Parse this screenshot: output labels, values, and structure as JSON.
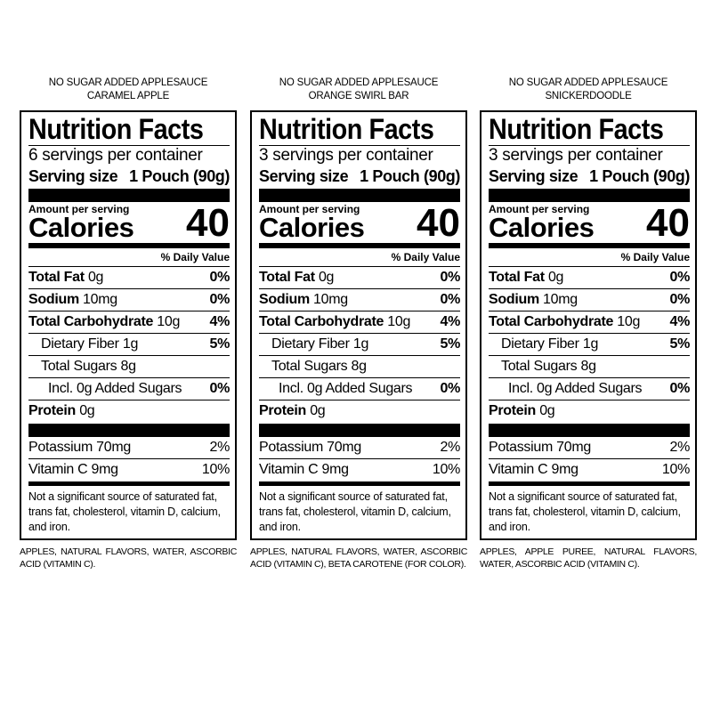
{
  "panels": [
    {
      "product_line": "NO SUGAR ADDED APPLESAUCE",
      "flavor": "CARAMEL APPLE",
      "title": "Nutrition Facts",
      "servings_per_container": "6 servings per container",
      "serving_size_label": "Serving size",
      "serving_size_value": "1 Pouch (90g)",
      "amount_per_serving": "Amount per serving",
      "calories_label": "Calories",
      "calories_value": "40",
      "daily_value_header": "% Daily Value",
      "nutrients": [
        {
          "name": "Total Fat",
          "amount": "0g",
          "dv": "0%"
        },
        {
          "name": "Sodium",
          "amount": "10mg",
          "dv": "0%"
        },
        {
          "name": "Total Carbohydrate",
          "amount": "10g",
          "dv": "4%"
        },
        {
          "name": "Dietary Fiber",
          "amount": "1g",
          "dv": "5%"
        },
        {
          "name": "Total Sugars",
          "amount": "8g",
          "dv": ""
        },
        {
          "name": "Incl. 0g Added Sugars",
          "amount": "",
          "dv": "0%"
        },
        {
          "name": "Protein",
          "amount": "0g",
          "dv": ""
        }
      ],
      "vitamins": [
        {
          "name": "Potassium",
          "amount": "70mg",
          "dv": "2%"
        },
        {
          "name": "Vitamin C",
          "amount": "9mg",
          "dv": "10%"
        }
      ],
      "footnote": "Not a significant source of saturated fat, trans fat, cholesterol, vitamin D, calcium, and iron.",
      "ingredients": "APPLES, NATURAL FLAVORS, WATER, ASCORBIC ACID (VITAMIN C)."
    },
    {
      "product_line": "NO SUGAR ADDED APPLESAUCE",
      "flavor": "ORANGE SWIRL BAR",
      "title": "Nutrition Facts",
      "servings_per_container": "3 servings per container",
      "serving_size_label": "Serving size",
      "serving_size_value": "1 Pouch (90g)",
      "amount_per_serving": "Amount per serving",
      "calories_label": "Calories",
      "calories_value": "40",
      "daily_value_header": "% Daily Value",
      "nutrients": [
        {
          "name": "Total Fat",
          "amount": "0g",
          "dv": "0%"
        },
        {
          "name": "Sodium",
          "amount": "10mg",
          "dv": "0%"
        },
        {
          "name": "Total Carbohydrate",
          "amount": "10g",
          "dv": "4%"
        },
        {
          "name": "Dietary Fiber",
          "amount": "1g",
          "dv": "5%"
        },
        {
          "name": "Total Sugars",
          "amount": "8g",
          "dv": ""
        },
        {
          "name": "Incl. 0g Added Sugars",
          "amount": "",
          "dv": "0%"
        },
        {
          "name": "Protein",
          "amount": "0g",
          "dv": ""
        }
      ],
      "vitamins": [
        {
          "name": "Potassium",
          "amount": "70mg",
          "dv": "2%"
        },
        {
          "name": "Vitamin C",
          "amount": "9mg",
          "dv": "10%"
        }
      ],
      "footnote": "Not a significant source of saturated fat, trans fat, cholesterol, vitamin D, calcium, and iron.",
      "ingredients": "APPLES, NATURAL FLAVORS, WATER, ASCORBIC ACID (VITAMIN C), BETA CAROTENE (FOR COLOR)."
    },
    {
      "product_line": "NO SUGAR ADDED APPLESAUCE",
      "flavor": "SNICKERDOODLE",
      "title": "Nutrition Facts",
      "servings_per_container": "3 servings per container",
      "serving_size_label": "Serving size",
      "serving_size_value": "1 Pouch (90g)",
      "amount_per_serving": "Amount per serving",
      "calories_label": "Calories",
      "calories_value": "40",
      "daily_value_header": "% Daily Value",
      "nutrients": [
        {
          "name": "Total Fat",
          "amount": "0g",
          "dv": "0%"
        },
        {
          "name": "Sodium",
          "amount": "10mg",
          "dv": "0%"
        },
        {
          "name": "Total Carbohydrate",
          "amount": "10g",
          "dv": "4%"
        },
        {
          "name": "Dietary Fiber",
          "amount": "1g",
          "dv": "5%"
        },
        {
          "name": "Total Sugars",
          "amount": "8g",
          "dv": ""
        },
        {
          "name": "Incl. 0g Added Sugars",
          "amount": "",
          "dv": "0%"
        },
        {
          "name": "Protein",
          "amount": "0g",
          "dv": ""
        }
      ],
      "vitamins": [
        {
          "name": "Potassium",
          "amount": "70mg",
          "dv": "2%"
        },
        {
          "name": "Vitamin C",
          "amount": "9mg",
          "dv": "10%"
        }
      ],
      "footnote": "Not a significant source of saturated fat, trans fat, cholesterol, vitamin D, calcium, and iron.",
      "ingredients": "APPLES, APPLE PUREE, NATURAL FLAVORS, WATER, ASCORBIC ACID (VITAMIN C)."
    }
  ]
}
